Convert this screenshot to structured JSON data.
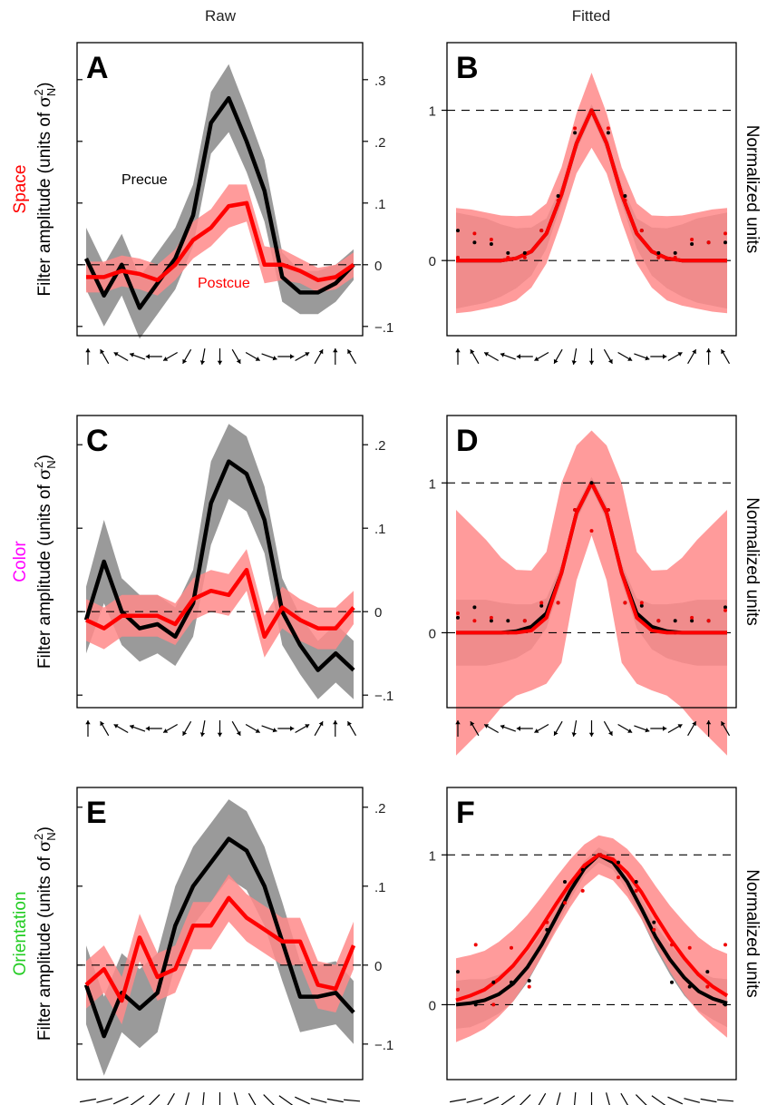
{
  "figure": {
    "column_headers": [
      "Raw",
      "Fitted"
    ],
    "row_labels": [
      {
        "text": "Space",
        "color": "#ff0000"
      },
      {
        "text": "Color",
        "color": "#ff00ff"
      },
      {
        "text": "Orientation",
        "color": "#22cc22"
      }
    ],
    "raw_ylabel_prefix": "Filter amplitude (units of ",
    "raw_ylabel_sigma": "σ",
    "raw_ylabel_sup": "2",
    "raw_ylabel_sub": "N",
    "raw_ylabel_suffix": ")",
    "fitted_ylabel": "Normalized units",
    "legend_precue": "Precue",
    "legend_postcue": "Postcue",
    "colors": {
      "precue": "#000000",
      "postcue": "#ff0000",
      "precue_band": "#9a9a9a",
      "postcue_band": "#ff8a8a"
    }
  },
  "chart_data": [
    {
      "panel": "A",
      "type": "line",
      "ylim": [
        -0.115,
        0.36
      ],
      "yticks": [
        -0.1,
        0,
        0.1,
        0.2,
        0.3
      ],
      "ytick_labels": [
        "−.1",
        "0",
        ".1",
        ".2",
        ".3"
      ],
      "refs": [
        0
      ],
      "xaxis": "arrows",
      "series": [
        {
          "name": "Precue",
          "values": [
            0.01,
            -0.05,
            0.0,
            -0.07,
            -0.03,
            0.01,
            0.08,
            0.23,
            0.27,
            0.2,
            0.12,
            -0.02,
            -0.045,
            -0.045,
            -0.03,
            0.0
          ],
          "band": [
            0.05,
            0.05,
            0.05,
            0.05,
            0.05,
            0.05,
            0.05,
            0.05,
            0.055,
            0.05,
            0.05,
            0.04,
            0.035,
            0.035,
            0.03,
            0.025
          ]
        },
        {
          "name": "Postcue",
          "values": [
            -0.02,
            -0.02,
            -0.01,
            -0.015,
            -0.025,
            0.0,
            0.04,
            0.06,
            0.095,
            0.1,
            0.0,
            0.0,
            -0.01,
            -0.025,
            -0.02,
            0.0
          ],
          "band": [
            0.025,
            0.025,
            0.025,
            0.025,
            0.025,
            0.025,
            0.03,
            0.03,
            0.035,
            0.03,
            0.03,
            0.025,
            0.02,
            0.02,
            0.02,
            0.02
          ]
        }
      ]
    },
    {
      "panel": "B",
      "type": "line",
      "ylim": [
        -0.5,
        1.45
      ],
      "yticks": [
        0,
        1
      ],
      "ytick_labels": [
        "0",
        "1"
      ],
      "refs": [
        0,
        1
      ],
      "xaxis": "arrows",
      "series": [
        {
          "name": "Precue",
          "values": [
            0,
            0,
            0,
            0,
            0.015,
            0.06,
            0.18,
            0.44,
            0.78,
            1.0,
            0.78,
            0.44,
            0.18,
            0.06,
            0.015,
            0,
            0,
            0,
            0
          ],
          "band": [
            0.32,
            0.3,
            0.28,
            0.24,
            0.2,
            0.16,
            0.1,
            0.06,
            0.05,
            0.04,
            0.05,
            0.06,
            0.1,
            0.16,
            0.2,
            0.24,
            0.28,
            0.3,
            0.32
          ],
          "dots": [
            0.2,
            0.12,
            0.11,
            0.05,
            0.05,
            0.2,
            0.43,
            0.85,
            1.0,
            0.85,
            0.43,
            0.2,
            0.05,
            0.05,
            0.11,
            0.12,
            0.12
          ]
        },
        {
          "name": "Postcue",
          "values": [
            0,
            0,
            0,
            0,
            0.015,
            0.06,
            0.18,
            0.44,
            0.78,
            1.0,
            0.78,
            0.44,
            0.18,
            0.06,
            0.015,
            0,
            0,
            0,
            0
          ],
          "band": [
            0.35,
            0.34,
            0.32,
            0.3,
            0.28,
            0.24,
            0.2,
            0.18,
            0.2,
            0.25,
            0.2,
            0.18,
            0.2,
            0.24,
            0.28,
            0.3,
            0.32,
            0.34,
            0.35
          ],
          "dots": [
            0.02,
            0.18,
            0.14,
            0.02,
            0.02,
            0.2,
            0.4,
            0.88,
            1.0,
            0.88,
            0.4,
            0.2,
            0.02,
            0.02,
            0.14,
            0.12,
            0.18
          ]
        }
      ]
    },
    {
      "panel": "C",
      "type": "line",
      "ylim": [
        -0.115,
        0.235
      ],
      "yticks": [
        -0.1,
        0,
        0.1,
        0.2
      ],
      "ytick_labels": [
        "−.1",
        "0",
        ".1",
        ".2"
      ],
      "refs": [
        0
      ],
      "xaxis": "arrows",
      "series": [
        {
          "name": "Precue",
          "values": [
            -0.01,
            0.06,
            0.0,
            -0.02,
            -0.015,
            -0.03,
            0.01,
            0.13,
            0.18,
            0.165,
            0.11,
            0.0,
            -0.04,
            -0.07,
            -0.05,
            -0.07
          ],
          "band": [
            0.04,
            0.05,
            0.04,
            0.04,
            0.035,
            0.035,
            0.04,
            0.05,
            0.045,
            0.045,
            0.04,
            0.04,
            0.035,
            0.035,
            0.035,
            0.035
          ]
        },
        {
          "name": "Postcue",
          "values": [
            -0.01,
            -0.02,
            -0.005,
            -0.005,
            -0.005,
            -0.015,
            0.015,
            0.025,
            0.02,
            0.05,
            -0.03,
            0.005,
            -0.01,
            -0.02,
            -0.02,
            0.005
          ],
          "band": [
            0.025,
            0.025,
            0.025,
            0.025,
            0.025,
            0.025,
            0.025,
            0.025,
            0.025,
            0.025,
            0.025,
            0.025,
            0.025,
            0.025,
            0.025,
            0.02
          ]
        }
      ]
    },
    {
      "panel": "D",
      "type": "line",
      "ylim": [
        -0.5,
        1.45
      ],
      "yticks": [
        0,
        1
      ],
      "ytick_labels": [
        "0",
        "1"
      ],
      "refs": [
        0,
        1
      ],
      "xaxis": "arrows",
      "series": [
        {
          "name": "Precue",
          "values": [
            0,
            0,
            0,
            0,
            0.01,
            0.04,
            0.13,
            0.4,
            0.8,
            1.0,
            0.8,
            0.4,
            0.13,
            0.04,
            0.01,
            0,
            0,
            0,
            0
          ],
          "band": [
            0.22,
            0.22,
            0.22,
            0.2,
            0.18,
            0.15,
            0.1,
            0.06,
            0.05,
            0.04,
            0.05,
            0.06,
            0.1,
            0.15,
            0.18,
            0.2,
            0.22,
            0.22,
            0.22
          ],
          "dots": [
            0.1,
            0.17,
            0.08,
            0.08,
            0.08,
            0.18,
            0.2,
            0.82,
            1.0,
            0.82,
            0.2,
            0.18,
            0.08,
            0.08,
            0.08,
            0.08,
            0.17
          ]
        },
        {
          "name": "Postcue",
          "values": [
            0,
            0,
            0,
            0,
            0,
            0.015,
            0.1,
            0.4,
            0.8,
            1.0,
            0.8,
            0.4,
            0.1,
            0.015,
            0,
            0,
            0,
            0,
            0
          ],
          "band": [
            0.82,
            0.72,
            0.62,
            0.5,
            0.42,
            0.4,
            0.44,
            0.6,
            0.45,
            0.35,
            0.45,
            0.6,
            0.44,
            0.4,
            0.42,
            0.5,
            0.62,
            0.72,
            0.82
          ],
          "dots": [
            0.13,
            0.08,
            0.1,
            0.0,
            0.08,
            0.2,
            0.2,
            0.82,
            0.68,
            0.82,
            0.2,
            0.2,
            0.08,
            0.0,
            0.1,
            0.08,
            0.15
          ]
        }
      ]
    },
    {
      "panel": "E",
      "type": "line",
      "ylim": [
        -0.145,
        0.225
      ],
      "yticks": [
        -0.1,
        0,
        0.1,
        0.2
      ],
      "ytick_labels": [
        "−.1",
        "0",
        ".1",
        ".2"
      ],
      "refs": [
        0
      ],
      "xaxis": "bars",
      "series": [
        {
          "name": "Precue",
          "values": [
            -0.025,
            -0.09,
            -0.035,
            -0.055,
            -0.035,
            0.05,
            0.1,
            0.13,
            0.16,
            0.145,
            0.1,
            0.03,
            -0.04,
            -0.04,
            -0.035,
            -0.06
          ],
          "band": [
            0.05,
            0.05,
            0.05,
            0.05,
            0.05,
            0.05,
            0.05,
            0.05,
            0.05,
            0.05,
            0.05,
            0.05,
            0.045,
            0.04,
            0.04,
            0.04
          ]
        },
        {
          "name": "Postcue",
          "values": [
            -0.025,
            -0.005,
            -0.045,
            0.035,
            -0.015,
            -0.005,
            0.05,
            0.05,
            0.085,
            0.06,
            0.045,
            0.03,
            0.03,
            -0.025,
            -0.03,
            0.025
          ],
          "band": [
            0.03,
            0.03,
            0.03,
            0.03,
            0.03,
            0.03,
            0.03,
            0.03,
            0.03,
            0.03,
            0.03,
            0.03,
            0.03,
            0.03,
            0.03,
            0.03
          ]
        }
      ]
    },
    {
      "panel": "F",
      "type": "line",
      "ylim": [
        -0.5,
        1.45
      ],
      "yticks": [
        0,
        1
      ],
      "ytick_labels": [
        "0",
        "1"
      ],
      "refs": [
        0,
        1
      ],
      "xaxis": "bars",
      "series": [
        {
          "name": "Precue",
          "values": [
            0.0,
            0.01,
            0.03,
            0.07,
            0.14,
            0.25,
            0.4,
            0.58,
            0.76,
            0.91,
            1.0,
            0.95,
            0.82,
            0.64,
            0.45,
            0.3,
            0.18,
            0.09,
            0.04,
            0.01
          ],
          "band": [
            0.16,
            0.16,
            0.14,
            0.13,
            0.12,
            0.1,
            0.08,
            0.07,
            0.06,
            0.05,
            0.05,
            0.05,
            0.06,
            0.07,
            0.08,
            0.1,
            0.12,
            0.13,
            0.14,
            0.16
          ],
          "dots": [
            0.22,
            0.0,
            0.15,
            0.15,
            0.16,
            0.5,
            0.82,
            0.9,
            1.0,
            0.95,
            0.82,
            0.55,
            0.15,
            0.12,
            0.22,
            0.0
          ]
        },
        {
          "name": "Postcue",
          "values": [
            0.03,
            0.06,
            0.1,
            0.17,
            0.26,
            0.38,
            0.52,
            0.67,
            0.81,
            0.93,
            1.0,
            0.97,
            0.88,
            0.75,
            0.59,
            0.44,
            0.31,
            0.2,
            0.12,
            0.06
          ],
          "band": [
            0.28,
            0.27,
            0.26,
            0.25,
            0.24,
            0.22,
            0.2,
            0.18,
            0.16,
            0.14,
            0.13,
            0.14,
            0.16,
            0.18,
            0.2,
            0.22,
            0.24,
            0.25,
            0.26,
            0.28
          ],
          "dots": [
            0.1,
            0.4,
            0.0,
            0.38,
            0.12,
            0.55,
            0.68,
            0.76,
            1.0,
            0.85,
            0.76,
            0.5,
            0.4,
            0.38,
            0.12,
            0.4
          ]
        }
      ]
    }
  ]
}
